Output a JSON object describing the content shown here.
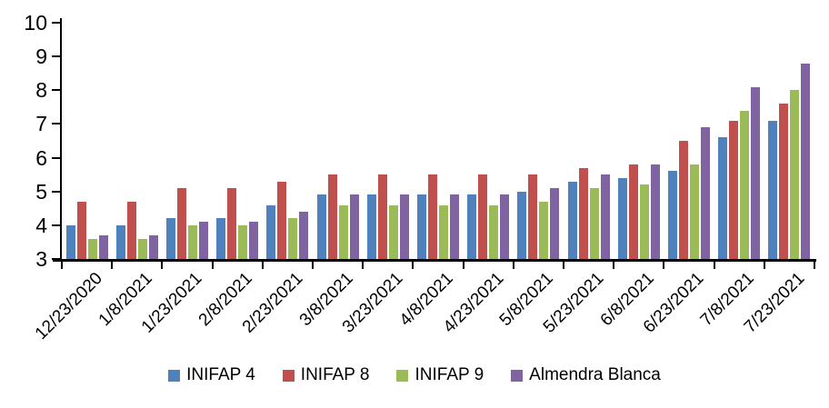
{
  "chart_data": {
    "type": "bar",
    "title": "",
    "xlabel": "",
    "ylabel": "",
    "ylim": [
      3,
      10
    ],
    "y_ticks": [
      3,
      4,
      5,
      6,
      7,
      8,
      9,
      10
    ],
    "grid": false,
    "legend_position": "bottom",
    "axis_color": "#000000",
    "background_color": "#FFFFFF",
    "categories": [
      "12/23/2020",
      "1/8/2021",
      "1/23/2021",
      "2/8/2021",
      "2/23/2021",
      "3/8/2021",
      "3/23/2021",
      "4/8/2021",
      "4/23/2021",
      "5/8/2021",
      "5/23/2021",
      "6/8/2021",
      "6/23/2021",
      "7/8/2021",
      "7/23/2021"
    ],
    "series": [
      {
        "name": "INIFAP 4",
        "color": "#4F81BD",
        "values": [
          4.0,
          4.0,
          4.2,
          4.2,
          4.6,
          4.9,
          4.9,
          4.9,
          4.9,
          5.0,
          5.3,
          5.4,
          5.6,
          6.6,
          7.1
        ]
      },
      {
        "name": "INIFAP 8",
        "color": "#C0504D",
        "values": [
          4.7,
          4.7,
          5.1,
          5.1,
          5.3,
          5.5,
          5.5,
          5.5,
          5.5,
          5.5,
          5.7,
          5.8,
          6.5,
          7.1,
          7.6
        ]
      },
      {
        "name": "INIFAP 9",
        "color": "#9BBB59",
        "values": [
          3.6,
          3.6,
          4.0,
          4.0,
          4.2,
          4.6,
          4.6,
          4.6,
          4.6,
          4.7,
          5.1,
          5.2,
          5.8,
          7.4,
          8.0
        ]
      },
      {
        "name": "Almendra Blanca",
        "color": "#8064A2",
        "values": [
          3.7,
          3.7,
          4.1,
          4.1,
          4.4,
          4.9,
          4.9,
          4.9,
          4.9,
          5.1,
          5.5,
          5.8,
          6.9,
          8.1,
          8.8
        ]
      }
    ]
  }
}
